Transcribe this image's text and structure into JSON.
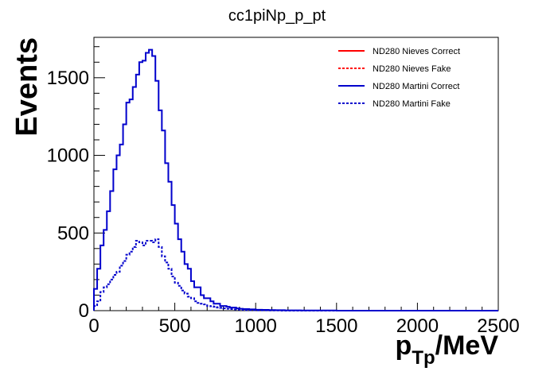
{
  "chart_data": {
    "type": "histogram",
    "title": "cc1piNp_p_pt",
    "xlabel": "p",
    "xlabel_sub": "Tp",
    "xlabel_unit": "/MeV",
    "ylabel": "Events",
    "xlim": [
      0,
      2500
    ],
    "ylim": [
      0,
      1760
    ],
    "xticks": [
      0,
      500,
      1000,
      1500,
      2000,
      2500
    ],
    "yticks": [
      0,
      500,
      1000,
      1500
    ],
    "bin_width": 20,
    "legend_position": "top-right",
    "legend": [
      {
        "label": "ND280 Nieves Correct",
        "color": "#ff0000",
        "dash": "solid"
      },
      {
        "label": "ND280 Nieves Fake",
        "color": "#ff0000",
        "dash": "dashed"
      },
      {
        "label": "ND280 Martini Correct",
        "color": "#0000cc",
        "dash": "solid"
      },
      {
        "label": "ND280 Martini Fake",
        "color": "#0000cc",
        "dash": "dashed"
      }
    ],
    "series": [
      {
        "name": "ND280 Martini Correct",
        "color": "#0000cc",
        "dash": "solid",
        "values": [
          140,
          270,
          420,
          520,
          640,
          770,
          910,
          1000,
          1070,
          1200,
          1340,
          1360,
          1440,
          1520,
          1600,
          1610,
          1660,
          1680,
          1640,
          1480,
          1290,
          1160,
          950,
          830,
          680,
          560,
          460,
          380,
          300,
          270,
          190,
          150,
          150,
          100,
          80,
          80,
          60,
          45,
          45,
          30,
          30,
          25,
          20,
          20,
          15,
          12,
          10,
          10,
          8,
          8,
          6,
          6,
          5,
          5,
          4,
          4,
          3,
          3,
          3,
          2,
          2,
          2,
          2,
          2,
          1,
          1,
          1,
          1,
          1,
          1,
          1,
          1,
          1,
          1,
          1
        ]
      },
      {
        "name": "ND280 Martini Fake",
        "color": "#0000cc",
        "dash": "dashed",
        "values": [
          30,
          60,
          120,
          150,
          170,
          200,
          230,
          250,
          290,
          320,
          360,
          380,
          410,
          450,
          440,
          420,
          450,
          450,
          440,
          460,
          410,
          350,
          310,
          270,
          220,
          180,
          160,
          130,
          110,
          90,
          80,
          60,
          50,
          45,
          40,
          30,
          28,
          25,
          20,
          18,
          15,
          12,
          10,
          8,
          7,
          6,
          5,
          4,
          3,
          3,
          2,
          2,
          2,
          2,
          1,
          1,
          1,
          1
        ]
      }
    ]
  }
}
